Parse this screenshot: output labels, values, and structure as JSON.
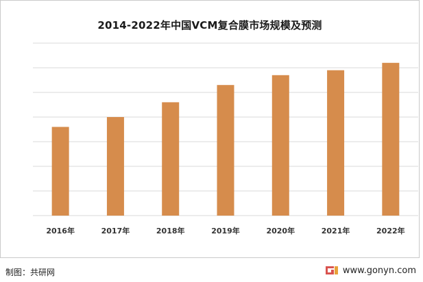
{
  "chart_data": {
    "type": "bar",
    "title": "2014-2022年中国VCM复合膜市场规模及预测",
    "categories": [
      "2016年",
      "2017年",
      "2018年",
      "2019年",
      "2020年",
      "2021年",
      "2022年"
    ],
    "values": [
      3.6,
      4.0,
      4.6,
      5.3,
      5.7,
      5.9,
      6.2
    ],
    "ylim": [
      0,
      7
    ],
    "grid": true,
    "bar_color": "#d68c4c",
    "gridline_color": "#d9d9d9"
  },
  "footer": {
    "source_label": "制图：共研网",
    "website": "www.gonyn.com"
  },
  "brand": {
    "logo_icon": "gonyn-logo-icon",
    "accent_color": "#d9534f"
  }
}
